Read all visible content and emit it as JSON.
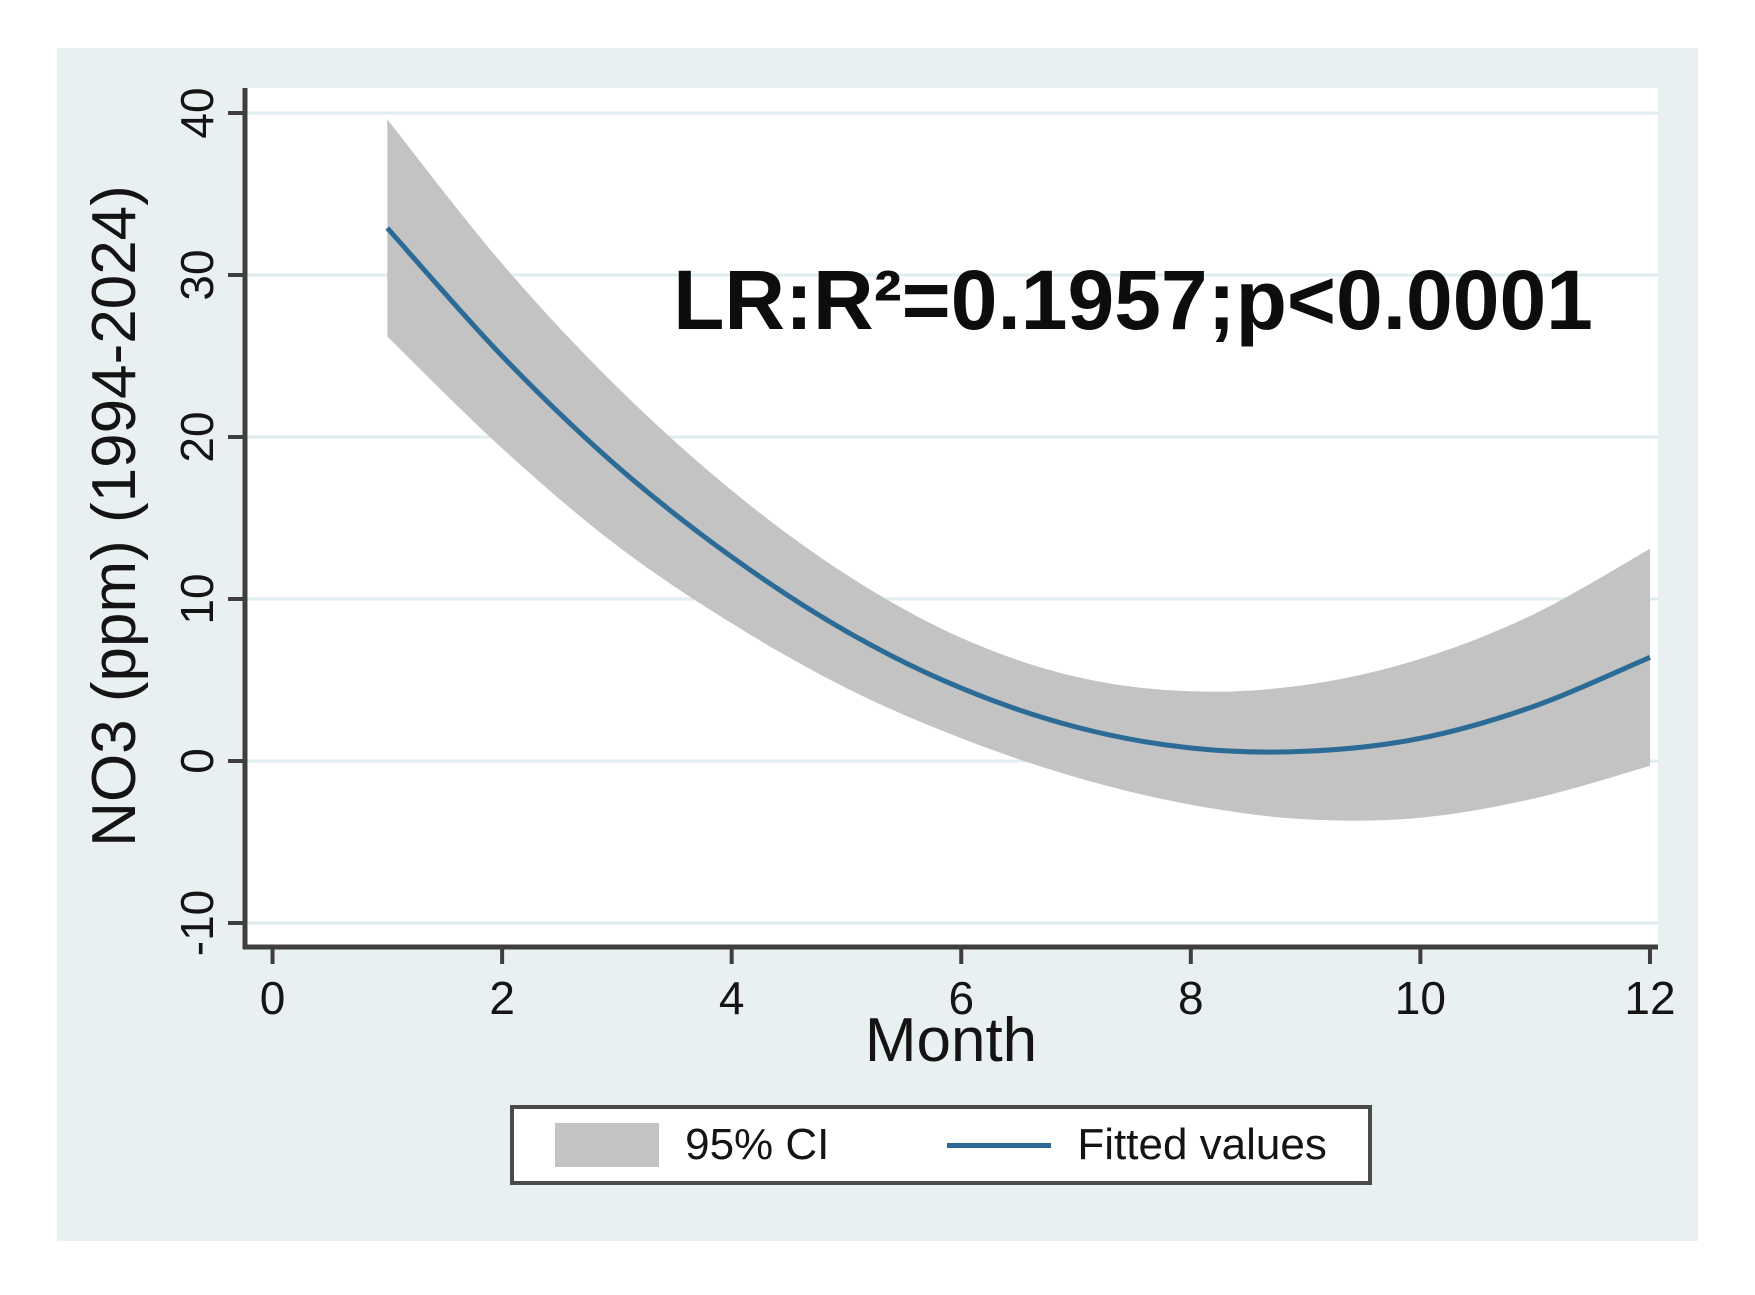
{
  "figure": {
    "panel_bg_color": "#e9f0f2",
    "plot_bg_color": "#ffffff",
    "legend": [
      {
        "swatch": "area",
        "label": "95% CI"
      },
      {
        "swatch": "line",
        "label": "Fitted values"
      }
    ]
  },
  "chart_data": {
    "type": "line",
    "title": "",
    "xlabel": "Month",
    "ylabel": "NO3 (ppm) (1994-2024)",
    "annotation": "LR:R²=0.1957;p<0.0001",
    "x": [
      1,
      2,
      3,
      4,
      5,
      6,
      7,
      8,
      9,
      10,
      11,
      12
    ],
    "series": [
      {
        "name": "Fitted values",
        "role": "line",
        "values": [
          32.9,
          25.0,
          18.2,
          12.6,
          8.0,
          4.5,
          2.1,
          0.8,
          0.6,
          1.4,
          3.4,
          6.4
        ]
      },
      {
        "name": "95% CI upper",
        "role": "band-upper",
        "values": [
          39.6,
          30.7,
          23.1,
          16.7,
          11.5,
          7.6,
          5.2,
          4.3,
          4.7,
          6.3,
          9.1,
          13.1
        ]
      },
      {
        "name": "95% CI lower",
        "role": "band-lower",
        "values": [
          26.2,
          19.3,
          13.3,
          8.5,
          4.5,
          1.4,
          -1.0,
          -2.7,
          -3.6,
          -3.5,
          -2.3,
          -0.3
        ]
      }
    ],
    "x_ticks": [
      0,
      2,
      4,
      6,
      8,
      10,
      12
    ],
    "y_ticks": [
      40,
      30,
      20,
      10,
      0,
      -10
    ],
    "xlim": [
      -0.24,
      12.07
    ],
    "ylim": [
      -11.48,
      41.54
    ],
    "grid": true,
    "gridline_color": "#ddedf0",
    "axis_color": "#3e3e3e",
    "line_color": "#2b6b95",
    "ci_color": "#c3c3c3",
    "legend_position": "bottom"
  }
}
